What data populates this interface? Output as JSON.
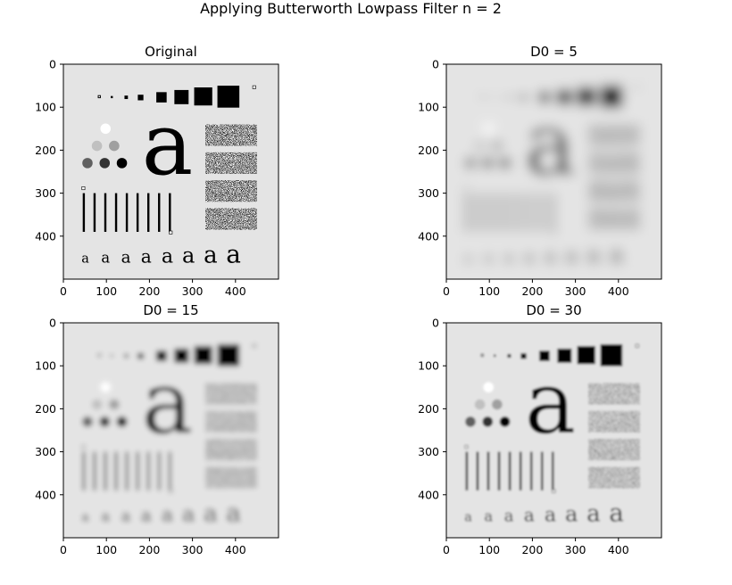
{
  "suptitle": "Applying Butterworth Lowpass Filter n = 2",
  "chart_data": {
    "type": "image",
    "panels": [
      {
        "title": "Original",
        "blur": 0,
        "xticks": [
          "0",
          "100",
          "200",
          "300",
          "400"
        ],
        "yticks": [
          "0",
          "100",
          "200",
          "300",
          "400"
        ],
        "xlim": [
          0,
          500
        ],
        "ylim": [
          500,
          0
        ]
      },
      {
        "title": "D0 = 5",
        "blur": 14,
        "xticks": [
          "0",
          "100",
          "200",
          "300",
          "400"
        ],
        "yticks": [
          "0",
          "100",
          "200",
          "300",
          "400"
        ],
        "xlim": [
          0,
          500
        ],
        "ylim": [
          500,
          0
        ]
      },
      {
        "title": "D0 = 15",
        "blur": 6,
        "xticks": [
          "0",
          "100",
          "200",
          "300",
          "400"
        ],
        "yticks": [
          "0",
          "100",
          "200",
          "300",
          "400"
        ],
        "xlim": [
          0,
          500
        ],
        "ylim": [
          500,
          0
        ]
      },
      {
        "title": "D0 = 30",
        "blur": 3,
        "xticks": [
          "0",
          "100",
          "200",
          "300",
          "400"
        ],
        "yticks": [
          "0",
          "100",
          "200",
          "300",
          "400"
        ],
        "xlim": [
          0,
          500
        ],
        "ylim": [
          500,
          0
        ]
      }
    ]
  }
}
